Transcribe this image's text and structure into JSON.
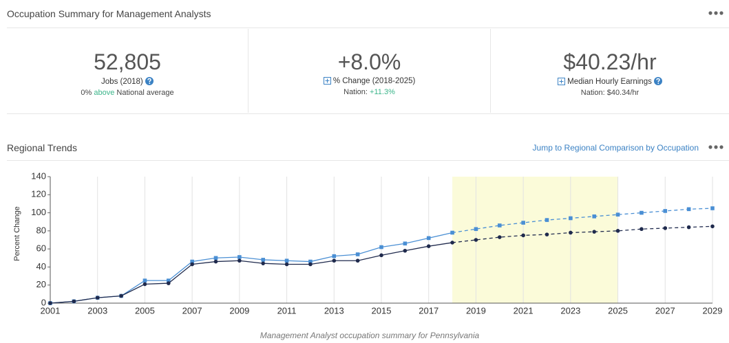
{
  "header": {
    "title": "Occupation Summary for Management Analysts"
  },
  "cards": [
    {
      "value": "52,805",
      "label": "Jobs (2018)",
      "note": [
        "0% ",
        "above",
        " National average"
      ]
    },
    {
      "value": "+8.0%",
      "label": "% Change (2018-2025)",
      "note": [
        "Nation: ",
        "+11.3%"
      ]
    },
    {
      "value": "$40.23/hr",
      "label": "Median Hourly Earnings",
      "note": [
        "Nation: $40.34/hr"
      ]
    }
  ],
  "section": {
    "title": "Regional Trends",
    "link": "Jump to Regional Comparison by Occupation"
  },
  "chart_data": {
    "type": "line",
    "y_label": "Percent Change",
    "caption": "Management Analyst occupation summary for Pennsylvania",
    "x": [
      2001,
      2002,
      2003,
      2004,
      2005,
      2006,
      2007,
      2008,
      2009,
      2010,
      2011,
      2012,
      2013,
      2014,
      2015,
      2016,
      2017,
      2018,
      2019,
      2020,
      2021,
      2022,
      2023,
      2024,
      2025,
      2026,
      2027,
      2028,
      2029
    ],
    "series": [
      {
        "color": "#4a8fd4",
        "marker": "square",
        "values": [
          0,
          2,
          6,
          8,
          25,
          25,
          46,
          50,
          51,
          48,
          47,
          46,
          52,
          54,
          62,
          66,
          72,
          78,
          82,
          86,
          89,
          92,
          94,
          96,
          98,
          100,
          102,
          104,
          105
        ]
      },
      {
        "color": "#1f2a4d",
        "marker": "circle",
        "values": [
          0,
          2,
          6,
          8,
          21,
          22,
          43,
          46,
          47,
          44,
          43,
          43,
          47,
          47,
          53,
          58,
          63,
          67,
          70,
          73,
          75,
          76,
          78,
          79,
          80,
          82,
          83,
          84,
          85
        ]
      }
    ],
    "xlim": [
      2001,
      2029
    ],
    "xticks": [
      2001,
      2003,
      2005,
      2007,
      2009,
      2011,
      2013,
      2015,
      2017,
      2019,
      2021,
      2023,
      2025,
      2027,
      2029
    ],
    "ylim": [
      0,
      140
    ],
    "yticks": [
      0,
      20,
      40,
      60,
      80,
      100,
      120,
      140
    ],
    "grid": "x",
    "highlight": [
      2018,
      2025
    ],
    "highlight_color": "#fbfbd9"
  }
}
